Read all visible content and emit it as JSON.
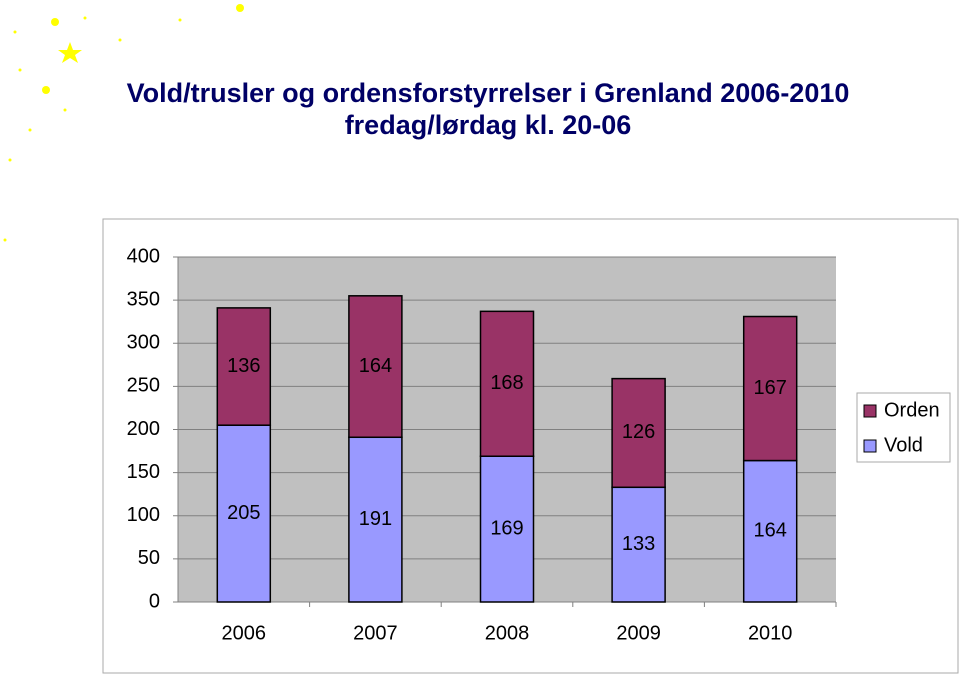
{
  "chart_data": {
    "type": "stacked_bar",
    "title": "Vold/trusler og ordensforstyrrelser i Grenland 2006-2010",
    "subtitle": "fredag/lørdag kl. 20-06",
    "categories": [
      "2006",
      "2007",
      "2008",
      "2009",
      "2010"
    ],
    "series": [
      {
        "name": "Vold",
        "color": "#9999ff",
        "values": [
          205,
          191,
          169,
          133,
          164
        ]
      },
      {
        "name": "Orden",
        "color": "#993366",
        "values": [
          136,
          164,
          168,
          126,
          167
        ]
      }
    ],
    "ylim": [
      0,
      400
    ],
    "yticks": [
      0,
      50,
      100,
      150,
      200,
      250,
      300,
      350,
      400
    ],
    "grid": true,
    "legend": "right"
  }
}
